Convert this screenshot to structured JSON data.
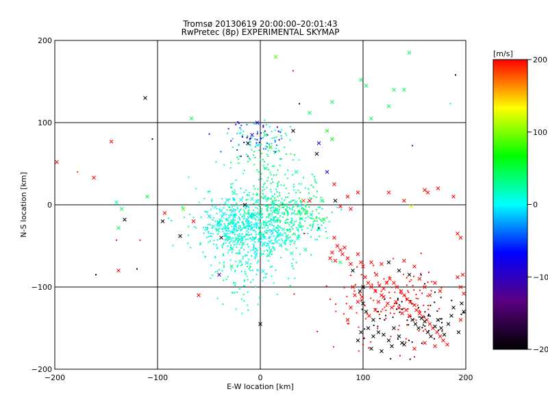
{
  "chart_data": {
    "type": "scatter",
    "title": "Tromsø 20130619 20:00:00–20:01:43",
    "subtitle": "RwPretec (8p) EXPERIMENTAL SKYMAP",
    "xlabel": "E-W location [km]",
    "ylabel": "N-S location [km]",
    "xlim": [
      -200,
      200
    ],
    "ylim": [
      -200,
      200
    ],
    "xticks": [
      "−200",
      "−100",
      "0",
      "100",
      "200"
    ],
    "xtick_values": [
      -200,
      -100,
      0,
      100,
      200
    ],
    "yticks": [
      "200",
      "100",
      "0",
      "−100",
      "−200"
    ],
    "ytick_values": [
      200,
      100,
      0,
      -100,
      -200
    ],
    "grid": true,
    "colorbar": {
      "label": "[m/s]",
      "range": [
        -200,
        200
      ],
      "ticks": [
        "200",
        "100",
        "0",
        "−100",
        "−200"
      ],
      "tick_values": [
        200,
        100,
        0,
        -100,
        -200
      ],
      "colors": [
        "#000000",
        "#5a0080",
        "#0000ff",
        "#00ffff",
        "#00ff00",
        "#ffff00",
        "#ff0000"
      ]
    },
    "markers": {
      "x": "cross",
      "dot": "dot"
    },
    "points": [
      [
        -198,
        52,
        200,
        "x"
      ],
      [
        -178,
        40,
        190,
        "dot"
      ],
      [
        -162,
        33,
        200,
        "x"
      ],
      [
        -145,
        77,
        200,
        "x"
      ],
      [
        -140,
        3,
        20,
        "x"
      ],
      [
        -138,
        -28,
        40,
        "x"
      ],
      [
        -135,
        -5,
        40,
        "x"
      ],
      [
        -132,
        -18,
        -200,
        "x"
      ],
      [
        -110,
        10,
        50,
        "x"
      ],
      [
        -112,
        130,
        -200,
        "x"
      ],
      [
        -95,
        -20,
        -200,
        "x"
      ],
      [
        -93,
        -10,
        200,
        "x"
      ],
      [
        -78,
        -38,
        -200,
        "x"
      ],
      [
        -75,
        -5,
        80,
        "x"
      ],
      [
        -65,
        -20,
        200,
        "x"
      ],
      [
        -67,
        105,
        40,
        "x"
      ],
      [
        -60,
        -110,
        200,
        "x"
      ],
      [
        -160,
        -85,
        -200,
        "dot"
      ],
      [
        -138,
        -80,
        200,
        "x"
      ],
      [
        -120,
        -78,
        -200,
        "dot"
      ],
      [
        -105,
        80,
        -200,
        "dot"
      ],
      [
        -178,
        40,
        180,
        "dot"
      ],
      [
        -140,
        -43,
        200,
        "dot"
      ],
      [
        -117,
        -43,
        200,
        "dot"
      ],
      [
        -40,
        -85,
        -100,
        "x"
      ],
      [
        -38,
        -40,
        -200,
        "x"
      ],
      [
        -28,
        -75,
        40,
        "x"
      ],
      [
        -20,
        -42,
        20,
        "x"
      ],
      [
        -15,
        0,
        -200,
        "x"
      ],
      [
        -12,
        75,
        -200,
        "x"
      ],
      [
        -8,
        85,
        -100,
        "x"
      ],
      [
        -3,
        100,
        -80,
        "x"
      ],
      [
        0,
        -145,
        -200,
        "x"
      ],
      [
        5,
        85,
        40,
        "x"
      ],
      [
        10,
        70,
        60,
        "x"
      ],
      [
        15,
        180,
        90,
        "x"
      ],
      [
        18,
        66,
        20,
        "dot"
      ],
      [
        32,
        90,
        -200,
        "x"
      ],
      [
        35,
        40,
        20,
        "x"
      ],
      [
        38,
        -10,
        40,
        "x"
      ],
      [
        42,
        5,
        180,
        "x"
      ],
      [
        45,
        -10,
        60,
        "x"
      ],
      [
        48,
        112,
        40,
        "x"
      ],
      [
        48,
        5,
        200,
        "x"
      ],
      [
        55,
        62,
        -200,
        "x"
      ],
      [
        57,
        75,
        -80,
        "x"
      ],
      [
        60,
        5,
        40,
        "x"
      ],
      [
        62,
        -18,
        50,
        "x"
      ],
      [
        65,
        40,
        -100,
        "x"
      ],
      [
        70,
        80,
        60,
        "x"
      ],
      [
        70,
        125,
        40,
        "x"
      ],
      [
        65,
        90,
        60,
        "x"
      ],
      [
        32,
        163,
        200,
        "dot"
      ],
      [
        38,
        123,
        -200,
        "dot"
      ],
      [
        57,
        -28,
        -200,
        "dot"
      ],
      [
        43,
        -35,
        200,
        "dot"
      ],
      [
        73,
        5,
        -200,
        "x"
      ],
      [
        72,
        25,
        200,
        "x"
      ],
      [
        78,
        -2,
        200,
        "x"
      ],
      [
        85,
        10,
        200,
        "x"
      ],
      [
        88,
        -5,
        200,
        "x"
      ],
      [
        95,
        15,
        200,
        "x"
      ],
      [
        98,
        152,
        40,
        "x"
      ],
      [
        103,
        145,
        40,
        "x"
      ],
      [
        108,
        105,
        40,
        "x"
      ],
      [
        125,
        120,
        40,
        "x"
      ],
      [
        130,
        140,
        40,
        "x"
      ],
      [
        140,
        140,
        40,
        "x"
      ],
      [
        145,
        185,
        40,
        "x"
      ],
      [
        148,
        72,
        -100,
        "dot"
      ],
      [
        185,
        123,
        40,
        "dot"
      ],
      [
        190,
        158,
        -200,
        "dot"
      ],
      [
        125,
        15,
        200,
        "x"
      ],
      [
        140,
        5,
        200,
        "x"
      ],
      [
        147,
        -2,
        120,
        "x"
      ],
      [
        160,
        18,
        200,
        "x"
      ],
      [
        163,
        15,
        200,
        "x"
      ],
      [
        173,
        20,
        200,
        "x"
      ],
      [
        188,
        10,
        200,
        "x"
      ],
      [
        195,
        -40,
        200,
        "x"
      ],
      [
        192,
        -35,
        200,
        "x"
      ],
      [
        197,
        -85,
        200,
        "x"
      ],
      [
        192,
        -88,
        200,
        "x"
      ],
      [
        195,
        -100,
        200,
        "x"
      ],
      [
        198,
        -108,
        200,
        "x"
      ],
      [
        196,
        -120,
        -200,
        "x"
      ],
      [
        198,
        -130,
        -200,
        "x"
      ],
      [
        195,
        -140,
        200,
        "x"
      ],
      [
        193,
        -155,
        -200,
        "x"
      ],
      [
        72,
        -40,
        200,
        "x"
      ],
      [
        75,
        -50,
        200,
        "x"
      ],
      [
        78,
        -55,
        200,
        "x"
      ],
      [
        80,
        -60,
        200,
        "x"
      ],
      [
        82,
        -52,
        200,
        "x"
      ],
      [
        70,
        -58,
        200,
        "x"
      ],
      [
        68,
        -65,
        200,
        "x"
      ],
      [
        73,
        -68,
        200,
        "x"
      ],
      [
        78,
        -70,
        40,
        "x"
      ],
      [
        85,
        -65,
        200,
        "x"
      ],
      [
        88,
        -72,
        200,
        "x"
      ],
      [
        90,
        -80,
        -200,
        "x"
      ],
      [
        95,
        -60,
        200,
        "x"
      ],
      [
        98,
        -70,
        200,
        "x"
      ],
      [
        100,
        -75,
        200,
        "x"
      ],
      [
        102,
        -88,
        200,
        "x"
      ],
      [
        100,
        -100,
        -200,
        "x"
      ],
      [
        97,
        -105,
        -200,
        "x"
      ],
      [
        99,
        -112,
        200,
        "x"
      ],
      [
        100,
        -120,
        -200,
        "x"
      ],
      [
        103,
        -130,
        -200,
        "x"
      ],
      [
        106,
        -135,
        200,
        "x"
      ],
      [
        110,
        -140,
        -200,
        "x"
      ],
      [
        112,
        -128,
        200,
        "x"
      ],
      [
        115,
        -118,
        200,
        "x"
      ],
      [
        118,
        -110,
        200,
        "x"
      ],
      [
        120,
        -102,
        200,
        "x"
      ],
      [
        123,
        -95,
        200,
        "x"
      ],
      [
        126,
        -90,
        200,
        "x"
      ],
      [
        130,
        -95,
        200,
        "x"
      ],
      [
        133,
        -100,
        200,
        "x"
      ],
      [
        137,
        -105,
        200,
        "x"
      ],
      [
        140,
        -110,
        200,
        "x"
      ],
      [
        143,
        -115,
        200,
        "x"
      ],
      [
        146,
        -118,
        200,
        "x"
      ],
      [
        150,
        -122,
        200,
        "x"
      ],
      [
        152,
        -128,
        200,
        "x"
      ],
      [
        155,
        -132,
        200,
        "x"
      ],
      [
        158,
        -136,
        200,
        "x"
      ],
      [
        162,
        -140,
        200,
        "x"
      ],
      [
        165,
        -145,
        200,
        "x"
      ],
      [
        168,
        -150,
        200,
        "x"
      ],
      [
        172,
        -155,
        200,
        "x"
      ],
      [
        175,
        -160,
        200,
        "x"
      ],
      [
        178,
        -165,
        200,
        "x"
      ],
      [
        182,
        -170,
        200,
        "x"
      ],
      [
        105,
        -95,
        200,
        "x"
      ],
      [
        108,
        -100,
        200,
        "x"
      ],
      [
        112,
        -105,
        200,
        "x"
      ],
      [
        116,
        -98,
        200,
        "x"
      ],
      [
        120,
        -112,
        200,
        "x"
      ],
      [
        124,
        -120,
        200,
        "x"
      ],
      [
        128,
        -125,
        200,
        "x"
      ],
      [
        132,
        -118,
        200,
        "x"
      ],
      [
        135,
        -125,
        200,
        "x"
      ],
      [
        138,
        -132,
        200,
        "x"
      ],
      [
        142,
        -128,
        200,
        "x"
      ],
      [
        145,
        -135,
        200,
        "x"
      ],
      [
        148,
        -140,
        -200,
        "x"
      ],
      [
        151,
        -145,
        -200,
        "x"
      ],
      [
        154,
        -150,
        -200,
        "x"
      ],
      [
        157,
        -138,
        -200,
        "x"
      ],
      [
        160,
        -142,
        -200,
        "x"
      ],
      [
        163,
        -155,
        -200,
        "x"
      ],
      [
        166,
        -160,
        -200,
        "x"
      ],
      [
        170,
        -148,
        -200,
        "x"
      ],
      [
        173,
        -140,
        -200,
        "x"
      ],
      [
        176,
        -150,
        -200,
        "x"
      ],
      [
        179,
        -158,
        -200,
        "x"
      ],
      [
        183,
        -145,
        -200,
        "x"
      ],
      [
        186,
        -135,
        -200,
        "x"
      ],
      [
        188,
        -125,
        -200,
        "x"
      ],
      [
        105,
        -150,
        -200,
        "x"
      ],
      [
        110,
        -160,
        -200,
        "x"
      ],
      [
        115,
        -155,
        -200,
        "x"
      ],
      [
        120,
        -158,
        -200,
        "x"
      ],
      [
        125,
        -165,
        -200,
        "x"
      ],
      [
        130,
        -150,
        -200,
        "x"
      ],
      [
        135,
        -160,
        -200,
        "x"
      ],
      [
        140,
        -170,
        -200,
        "x"
      ],
      [
        108,
        -175,
        -200,
        "x"
      ],
      [
        118,
        -178,
        -200,
        "x"
      ],
      [
        128,
        -172,
        -200,
        "x"
      ],
      [
        138,
        -168,
        -200,
        "x"
      ],
      [
        150,
        -175,
        200,
        "x"
      ],
      [
        160,
        -168,
        200,
        "x"
      ],
      [
        170,
        -172,
        200,
        "x"
      ],
      [
        125,
        -70,
        -200,
        "x"
      ],
      [
        140,
        -68,
        200,
        "x"
      ],
      [
        150,
        -75,
        200,
        "x"
      ],
      [
        155,
        -90,
        200,
        "x"
      ],
      [
        160,
        -100,
        200,
        "x"
      ],
      [
        165,
        -110,
        200,
        "x"
      ],
      [
        170,
        -95,
        200,
        "x"
      ],
      [
        175,
        -105,
        200,
        "x"
      ],
      [
        145,
        -85,
        -200,
        "x"
      ],
      [
        135,
        -80,
        -200,
        "x"
      ],
      [
        113,
        -85,
        200,
        "x"
      ],
      [
        108,
        -70,
        200,
        "x"
      ],
      [
        118,
        -72,
        200,
        "x"
      ],
      [
        90,
        -100,
        200,
        "x"
      ],
      [
        92,
        -110,
        200,
        "x"
      ],
      [
        95,
        -118,
        200,
        "x"
      ],
      [
        88,
        -125,
        200,
        "x"
      ],
      [
        85,
        -140,
        200,
        "x"
      ],
      [
        98,
        -155,
        -200,
        "x"
      ],
      [
        95,
        -165,
        -200,
        "x"
      ],
      [
        100,
        -170,
        200,
        "dot"
      ],
      [
        150,
        -185,
        200,
        "dot"
      ]
    ],
    "clusters": [
      {
        "cx": -5,
        "cy": -25,
        "sx": 28,
        "sy": 22,
        "n": 650,
        "seed": 11,
        "vmin": -10,
        "vmax": 30,
        "mark": "dot"
      },
      {
        "cx": -5,
        "cy": -30,
        "sx": 25,
        "sy": 20,
        "n": 90,
        "seed": 21,
        "vmin": -10,
        "vmax": 30,
        "mark": "x"
      },
      {
        "cx": 20,
        "cy": -5,
        "sx": 20,
        "sy": 15,
        "n": 140,
        "seed": 31,
        "vmin": 20,
        "vmax": 50,
        "mark": "dot"
      },
      {
        "cx": 40,
        "cy": -15,
        "sx": 15,
        "sy": 18,
        "n": 60,
        "seed": 41,
        "vmin": 30,
        "vmax": 50,
        "mark": "dot"
      },
      {
        "cx": -5,
        "cy": 80,
        "sx": 15,
        "sy": 12,
        "n": 90,
        "seed": 51,
        "vmin": -110,
        "vmax": 40,
        "mark": "dot"
      },
      {
        "cx": 5,
        "cy": 45,
        "sx": 22,
        "sy": 20,
        "n": 80,
        "seed": 61,
        "vmin": 20,
        "vmax": 45,
        "mark": "dot"
      },
      {
        "cx": -10,
        "cy": -85,
        "sx": 18,
        "sy": 20,
        "n": 70,
        "seed": 71,
        "vmin": 0,
        "vmax": 40,
        "mark": "dot"
      },
      {
        "cx": 130,
        "cy": -120,
        "sx": 30,
        "sy": 25,
        "n": 120,
        "seed": 81,
        "vmin": 190,
        "vmax": 200,
        "mark": "dot"
      },
      {
        "cx": 150,
        "cy": -140,
        "sx": 25,
        "sy": 20,
        "n": 60,
        "seed": 91,
        "vmin": -200,
        "vmax": -190,
        "mark": "dot"
      }
    ]
  }
}
